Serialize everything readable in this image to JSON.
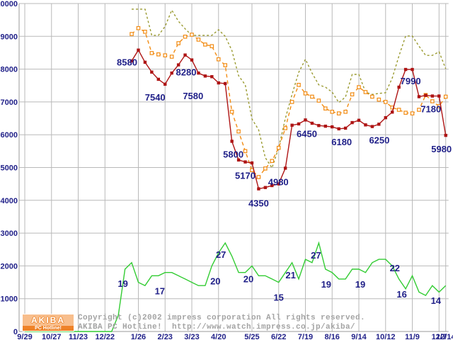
{
  "footer": {
    "copyright": "Copyright (c)2002 impress corporation All rights reserved.",
    "site": "AKIBA PC Hotline!  http://www.watch.impress.co.jp/akiba/"
  },
  "logo": {
    "title": "AKIBA",
    "subtitle": "PC Hotline!"
  },
  "colors": {
    "grid": "#b9b9b9",
    "axis": "#999999",
    "tick_label": "#1f1f88",
    "value_label": "#1f1f88",
    "copyright_text": "#a3a3a3",
    "logo_bg": "#f8be8c",
    "logo_strip": "#ef8228"
  },
  "chart_data": {
    "type": "line",
    "title": "",
    "xlabel": "",
    "ylabel": "",
    "ylim": [
      0,
      10000
    ],
    "y_tick_step": 1000,
    "grid": true,
    "legend": "none",
    "total_weeks": 63,
    "x_ticks": [
      {
        "label": "9/29",
        "week": 0
      },
      {
        "label": "10/27",
        "week": 4
      },
      {
        "label": "11/23",
        "week": 8
      },
      {
        "label": "12/22",
        "week": 12
      },
      {
        "label": "1/26",
        "week": 17
      },
      {
        "label": "2/23",
        "week": 21
      },
      {
        "label": "3/23",
        "week": 25
      },
      {
        "label": "4/20",
        "week": 29
      },
      {
        "label": "5/25",
        "week": 34
      },
      {
        "label": "6/22",
        "week": 38
      },
      {
        "label": "7/19",
        "week": 42
      },
      {
        "label": "8/16",
        "week": 46
      },
      {
        "label": "9/14",
        "week": 50
      },
      {
        "label": "10/12",
        "week": 54
      },
      {
        "label": "11/9",
        "week": 58
      },
      {
        "label": "12/7",
        "week": 62
      },
      {
        "label": "12/14",
        "week": 63
      }
    ],
    "series": [
      {
        "name": "high",
        "color": "#9a9a30",
        "style": "dashed",
        "dash": "3 3",
        "marker": "none",
        "scale": 1,
        "start_week": 16,
        "values": [
          9830,
          9830,
          9830,
          9030,
          9030,
          9300,
          9800,
          9460,
          9230,
          9030,
          9030,
          9030,
          9030,
          9200,
          9000,
          8570,
          7800,
          7520,
          6480,
          6150,
          5300,
          4990,
          5600,
          6500,
          7230,
          7900,
          8300,
          7880,
          7520,
          7450,
          7300,
          6980,
          7150,
          7840,
          7840,
          7300,
          7230,
          7260,
          7280,
          7730,
          8400,
          9010,
          9010,
          8700,
          8420,
          8420,
          8530,
          8010
        ],
        "labels": []
      },
      {
        "name": "mid",
        "color": "#f28c14",
        "style": "dashed",
        "dash": "5 4",
        "marker": "square-hollow",
        "scale": 1,
        "start_week": 16,
        "values": [
          9070,
          9250,
          9140,
          8490,
          8450,
          8420,
          8380,
          8790,
          8990,
          9050,
          8900,
          8750,
          8700,
          8300,
          8120,
          6700,
          6100,
          5500,
          4920,
          4710,
          4970,
          5200,
          5600,
          6200,
          7000,
          7520,
          7260,
          7160,
          7040,
          6800,
          6700,
          6650,
          6700,
          7230,
          7450,
          7300,
          7160,
          7070,
          7000,
          6830,
          6760,
          6670,
          6650,
          6760,
          7210,
          7020,
          6870,
          7160
        ],
        "labels": []
      },
      {
        "name": "low",
        "color": "#ae1414",
        "style": "solid",
        "dash": "",
        "marker": "square-filled",
        "scale": 1,
        "start_week": 16,
        "values": [
          8250,
          8580,
          8210,
          7910,
          7690,
          7540,
          7880,
          8130,
          8430,
          8280,
          7880,
          7790,
          7770,
          7580,
          7560,
          5800,
          5230,
          5170,
          5140,
          4350,
          4390,
          4450,
          4500,
          4980,
          6290,
          6330,
          6450,
          6350,
          6280,
          6260,
          6240,
          6180,
          6200,
          6370,
          6440,
          6300,
          6250,
          6320,
          6520,
          6690,
          7450,
          7990,
          7990,
          7160,
          7200,
          7180,
          7180,
          5980
        ],
        "labels": [
          {
            "week": 17,
            "text": "8580",
            "dx": -16,
            "dy": 13
          },
          {
            "week": 21,
            "text": "7540",
            "dx": -14,
            "dy": 14
          },
          {
            "week": 25,
            "text": "8280",
            "dx": -8,
            "dy": 13
          },
          {
            "week": 29,
            "text": "7580",
            "dx": -36,
            "dy": 14
          },
          {
            "week": 31,
            "text": "5800",
            "dx": 2,
            "dy": 14
          },
          {
            "week": 33,
            "text": "5170",
            "dx": 0,
            "dy": 15
          },
          {
            "week": 35,
            "text": "4350",
            "dx": 0,
            "dy": 16
          },
          {
            "week": 39,
            "text": "4980",
            "dx": -10,
            "dy": 15
          },
          {
            "week": 42,
            "text": "6450",
            "dx": 2,
            "dy": 15
          },
          {
            "week": 47,
            "text": "6180",
            "dx": 4,
            "dy": 14
          },
          {
            "week": 52,
            "text": "6250",
            "dx": 10,
            "dy": 15
          },
          {
            "week": 57,
            "text": "7990",
            "dx": 7,
            "dy": 12
          },
          {
            "week": 61,
            "text": "7180",
            "dx": -2,
            "dy": 14
          },
          {
            "week": 63,
            "text": "5980",
            "dx": -6,
            "dy": 15
          }
        ]
      },
      {
        "name": "count",
        "color": "#33cc33",
        "style": "solid",
        "dash": "",
        "marker": "none",
        "scale": 100,
        "start_week": 0,
        "values": [
          0,
          0,
          0,
          0,
          0,
          0,
          0,
          0,
          0,
          0,
          0,
          0,
          0,
          0,
          5,
          19,
          21,
          15,
          14,
          17,
          17,
          18,
          18,
          17,
          16,
          15,
          14,
          14,
          20,
          24,
          27,
          23,
          18,
          18,
          20,
          17,
          17,
          16,
          15,
          18,
          21,
          16,
          22,
          21,
          27,
          19,
          18,
          16,
          16,
          19,
          19,
          18,
          21,
          22,
          22,
          20,
          16,
          13,
          17,
          12,
          11,
          14,
          12,
          14
        ],
        "labels": [
          {
            "week": 15,
            "text": "19",
            "dx": -3,
            "dy": 16
          },
          {
            "week": 20,
            "text": "17",
            "dx": 2,
            "dy": 17
          },
          {
            "week": 28,
            "text": "20",
            "dx": 5,
            "dy": 17
          },
          {
            "week": 30,
            "text": "27",
            "dx": -6,
            "dy": 12
          },
          {
            "week": 34,
            "text": "20",
            "dx": -5,
            "dy": 14
          },
          {
            "week": 38,
            "text": "15",
            "dx": 0,
            "dy": 17
          },
          {
            "week": 40,
            "text": "21",
            "dx": -2,
            "dy": 13
          },
          {
            "week": 44,
            "text": "27",
            "dx": -4,
            "dy": 13
          },
          {
            "week": 45,
            "text": "19",
            "dx": 1,
            "dy": 17
          },
          {
            "week": 50,
            "text": "19",
            "dx": 2,
            "dy": 17
          },
          {
            "week": 54,
            "text": "22",
            "dx": 13,
            "dy": 8
          },
          {
            "week": 56,
            "text": "16",
            "dx": 4,
            "dy": 17
          },
          {
            "week": 61,
            "text": "14",
            "dx": 5,
            "dy": 17
          }
        ]
      }
    ]
  }
}
